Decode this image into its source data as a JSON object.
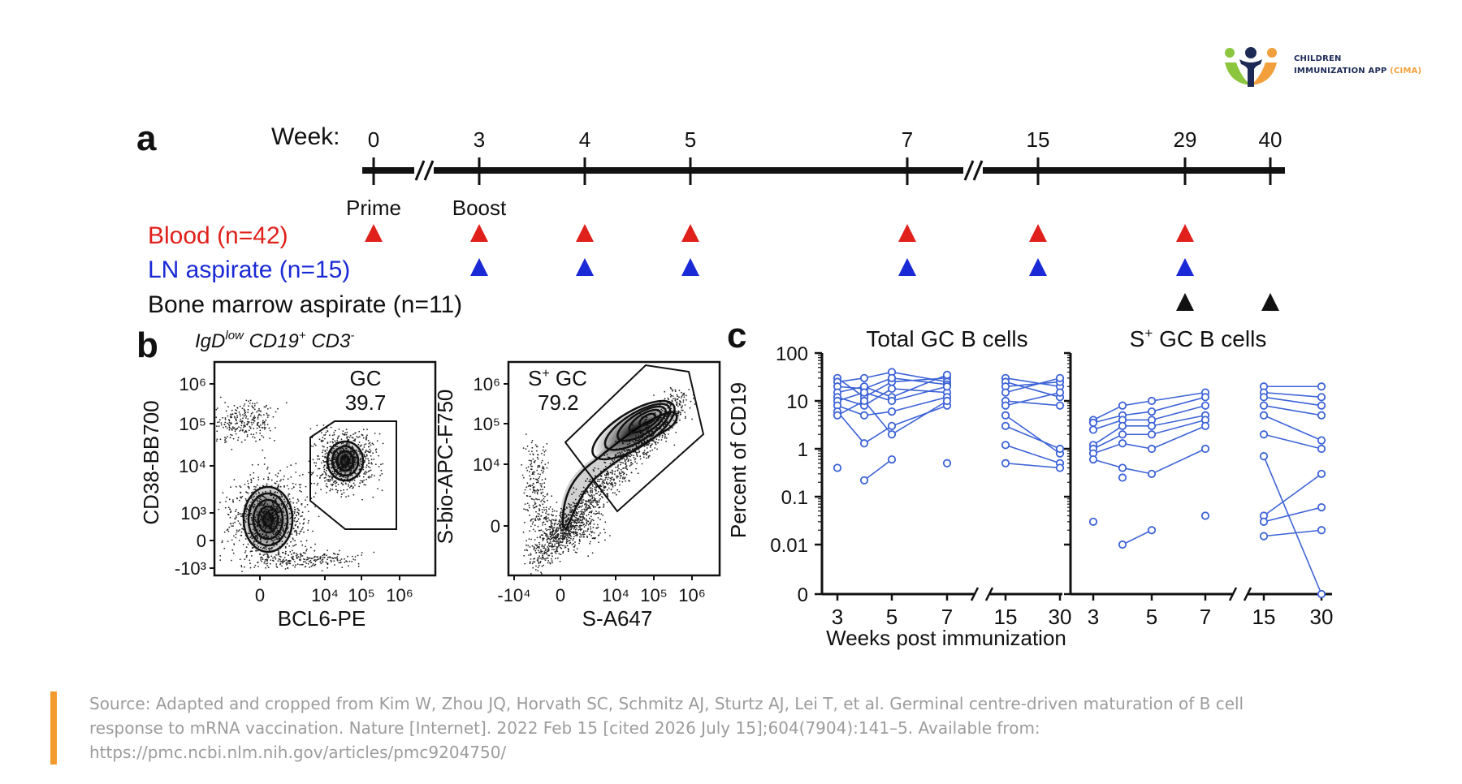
{
  "logo": {
    "line1": "CHILDREN",
    "line2": "IMMUNIZATION APP",
    "line2_accent": "(CIMA)",
    "brand_colors": [
      "#1c2a55",
      "#f2a03d",
      "#8cc63f"
    ]
  },
  "panel_a": {
    "letter": "a",
    "week_label": "Week:",
    "weeks": [
      "0",
      "3",
      "4",
      "5",
      "7",
      "15",
      "29",
      "40"
    ],
    "events": {
      "prime": "Prime",
      "boost": "Boost"
    },
    "rows": [
      {
        "label": "Blood (n=42)",
        "color": "#e0201b",
        "weeks": [
          "0",
          "3",
          "4",
          "5",
          "7",
          "15",
          "29"
        ]
      },
      {
        "label": "LN aspirate (n=15)",
        "color": "#1a2ad6",
        "weeks": [
          "3",
          "4",
          "5",
          "7",
          "15",
          "29"
        ]
      },
      {
        "label": "Bone marrow aspirate (n=11)",
        "color": "#111111",
        "weeks": [
          "29",
          "40"
        ]
      }
    ]
  },
  "panel_b": {
    "letter": "b",
    "gating_label": "IgD",
    "gating_sup1": "low",
    "gating_mid": " CD19",
    "gating_sup2": "+",
    "gating_end": " CD3",
    "gating_sup3": "-",
    "plot1": {
      "ylabel": "CD38-BB700",
      "xlabel": "BCL6-PE",
      "gate_name": "GC",
      "gate_value": "39.7",
      "yticks": [
        "10⁶",
        "10⁵",
        "10⁴",
        "10³",
        "0",
        "-10³"
      ],
      "xticks": [
        "0",
        "10⁴",
        "10⁵",
        "10⁶"
      ]
    },
    "plot2": {
      "ylabel": "S-bio-APC-F750",
      "xlabel": "S-A647",
      "gate_name_pre": "S",
      "gate_name_sup": "+",
      "gate_name_post": " GC",
      "gate_value": "79.2",
      "yticks": [
        "10⁶",
        "10⁵",
        "10⁴",
        "0"
      ],
      "xticks": [
        "-10⁴",
        "0",
        "10⁴",
        "10⁵",
        "10⁶"
      ]
    }
  },
  "panel_c": {
    "letter": "c",
    "ylabel": "Percent of CD19",
    "xlabel": "Weeks post immunization",
    "yticks": [
      "100",
      "10",
      "1",
      "0.1",
      "0.01",
      "0"
    ],
    "line_color": "#3d63d6",
    "left_title": "Total GC B cells",
    "right_title_pre": "S",
    "right_title_sup": "+",
    "right_title_post": " GC B cells",
    "xticks_left": [
      "3",
      "5",
      "7",
      "15",
      "30"
    ],
    "xticks_right": [
      "3",
      "5",
      "7",
      "15",
      "30"
    ]
  },
  "chart_data": [
    {
      "type": "scatter",
      "title": "Total GC B cells",
      "xlabel": "Weeks post immunization",
      "ylabel": "Percent of CD19",
      "y_scale": "log",
      "ylim": [
        0,
        100
      ],
      "x_ticks": [
        3,
        5,
        7,
        15,
        30
      ],
      "series": [
        {
          "points": [
            [
              3,
              30
            ],
            [
              4,
              12
            ],
            [
              5,
              25
            ],
            [
              7,
              30
            ]
          ]
        },
        {
          "points": [
            [
              3,
              25
            ],
            [
              4,
              30
            ],
            [
              5,
              40
            ],
            [
              7,
              25
            ]
          ]
        },
        {
          "points": [
            [
              3,
              20
            ],
            [
              4,
              18
            ],
            [
              5,
              30
            ],
            [
              7,
              22
            ]
          ]
        },
        {
          "points": [
            [
              3,
              15
            ],
            [
              4,
              20
            ],
            [
              5,
              12
            ],
            [
              7,
              35
            ]
          ]
        },
        {
          "points": [
            [
              3,
              12
            ],
            [
              4,
              8
            ],
            [
              5,
              18
            ],
            [
              7,
              15
            ]
          ]
        },
        {
          "points": [
            [
              3,
              10
            ],
            [
              4,
              15
            ],
            [
              5,
              10
            ],
            [
              7,
              20
            ]
          ]
        },
        {
          "points": [
            [
              3,
              8
            ],
            [
              4,
              5
            ],
            [
              5,
              6
            ],
            [
              7,
              12
            ]
          ]
        },
        {
          "points": [
            [
              3,
              6
            ],
            [
              4,
              1.3
            ],
            [
              5,
              3
            ],
            [
              7,
              8
            ]
          ]
        },
        {
          "points": [
            [
              3,
              5
            ],
            [
              4,
              10
            ],
            [
              5,
              2
            ],
            [
              7,
              10
            ]
          ]
        },
        {
          "points": [
            [
              3,
              0.4
            ]
          ]
        },
        {
          "points": [
            [
              4,
              0.22
            ],
            [
              5,
              0.6
            ]
          ]
        },
        {
          "points": [
            [
              7,
              0.5
            ]
          ]
        },
        {
          "points": [
            [
              15,
              30
            ],
            [
              30,
              20
            ]
          ]
        },
        {
          "points": [
            [
              15,
              25
            ],
            [
              30,
              12
            ]
          ]
        },
        {
          "points": [
            [
              15,
              20
            ],
            [
              30,
              25
            ]
          ]
        },
        {
          "points": [
            [
              15,
              15
            ],
            [
              30,
              30
            ]
          ]
        },
        {
          "points": [
            [
              15,
              10
            ],
            [
              30,
              8
            ]
          ]
        },
        {
          "points": [
            [
              15,
              8
            ],
            [
              30,
              15
            ]
          ]
        },
        {
          "points": [
            [
              15,
              5
            ],
            [
              30,
              0.8
            ]
          ]
        },
        {
          "points": [
            [
              15,
              3
            ],
            [
              30,
              1
            ]
          ]
        },
        {
          "points": [
            [
              15,
              1.2
            ],
            [
              30,
              0.5
            ]
          ]
        },
        {
          "points": [
            [
              15,
              0.5
            ],
            [
              30,
              0.4
            ]
          ]
        }
      ]
    },
    {
      "type": "scatter",
      "title": "S+ GC B cells",
      "xlabel": "Weeks post immunization",
      "ylabel": "Percent of CD19",
      "y_scale": "log",
      "ylim": [
        0,
        100
      ],
      "x_ticks": [
        3,
        5,
        7,
        15,
        30
      ],
      "series": [
        {
          "points": [
            [
              3,
              4
            ],
            [
              4,
              8
            ],
            [
              5,
              10
            ],
            [
              7,
              15
            ]
          ]
        },
        {
          "points": [
            [
              3,
              3.5
            ],
            [
              4,
              5
            ],
            [
              5,
              6
            ],
            [
              7,
              12
            ]
          ]
        },
        {
          "points": [
            [
              3,
              2.5
            ],
            [
              4,
              4
            ],
            [
              5,
              4
            ],
            [
              7,
              8
            ]
          ]
        },
        {
          "points": [
            [
              3,
              1.2
            ],
            [
              4,
              3
            ],
            [
              5,
              3
            ],
            [
              7,
              5
            ]
          ]
        },
        {
          "points": [
            [
              3,
              1
            ],
            [
              4,
              2
            ],
            [
              5,
              2
            ],
            [
              7,
              4
            ]
          ]
        },
        {
          "points": [
            [
              3,
              0.8
            ],
            [
              4,
              1.3
            ],
            [
              5,
              1
            ],
            [
              7,
              3
            ]
          ]
        },
        {
          "points": [
            [
              3,
              0.6
            ],
            [
              4,
              0.4
            ],
            [
              5,
              0.3
            ],
            [
              7,
              1
            ]
          ]
        },
        {
          "points": [
            [
              3,
              0.03
            ]
          ]
        },
        {
          "points": [
            [
              4,
              0.01
            ],
            [
              5,
              0.02
            ]
          ]
        },
        {
          "points": [
            [
              4,
              0.25
            ]
          ]
        },
        {
          "points": [
            [
              7,
              0.04
            ]
          ]
        },
        {
          "points": [
            [
              15,
              20
            ],
            [
              30,
              20
            ]
          ]
        },
        {
          "points": [
            [
              15,
              15
            ],
            [
              30,
              12
            ]
          ]
        },
        {
          "points": [
            [
              15,
              12
            ],
            [
              30,
              8
            ]
          ]
        },
        {
          "points": [
            [
              15,
              8
            ],
            [
              30,
              5
            ]
          ]
        },
        {
          "points": [
            [
              15,
              5
            ],
            [
              30,
              1.5
            ]
          ]
        },
        {
          "points": [
            [
              15,
              2
            ],
            [
              30,
              1
            ]
          ]
        },
        {
          "points": [
            [
              15,
              0.7
            ],
            [
              30,
              0
            ]
          ]
        },
        {
          "points": [
            [
              15,
              0.04
            ],
            [
              30,
              0.3
            ]
          ]
        },
        {
          "points": [
            [
              15,
              0.03
            ],
            [
              30,
              0.06
            ]
          ]
        },
        {
          "points": [
            [
              15,
              0.015
            ],
            [
              30,
              0.02
            ]
          ]
        }
      ]
    }
  ],
  "source": "Source: Adapted and cropped from Kim W, Zhou JQ, Horvath SC, Schmitz AJ, Sturtz AJ, Lei T, et al. Germinal centre-driven maturation of B cell response to mRNA vaccination. Nature [Internet]. 2022 Feb 15 [cited 2026 July 15];604(7904):141–5. Available from: https://pmc.ncbi.nlm.nih.gov/articles/pmc9204750/"
}
